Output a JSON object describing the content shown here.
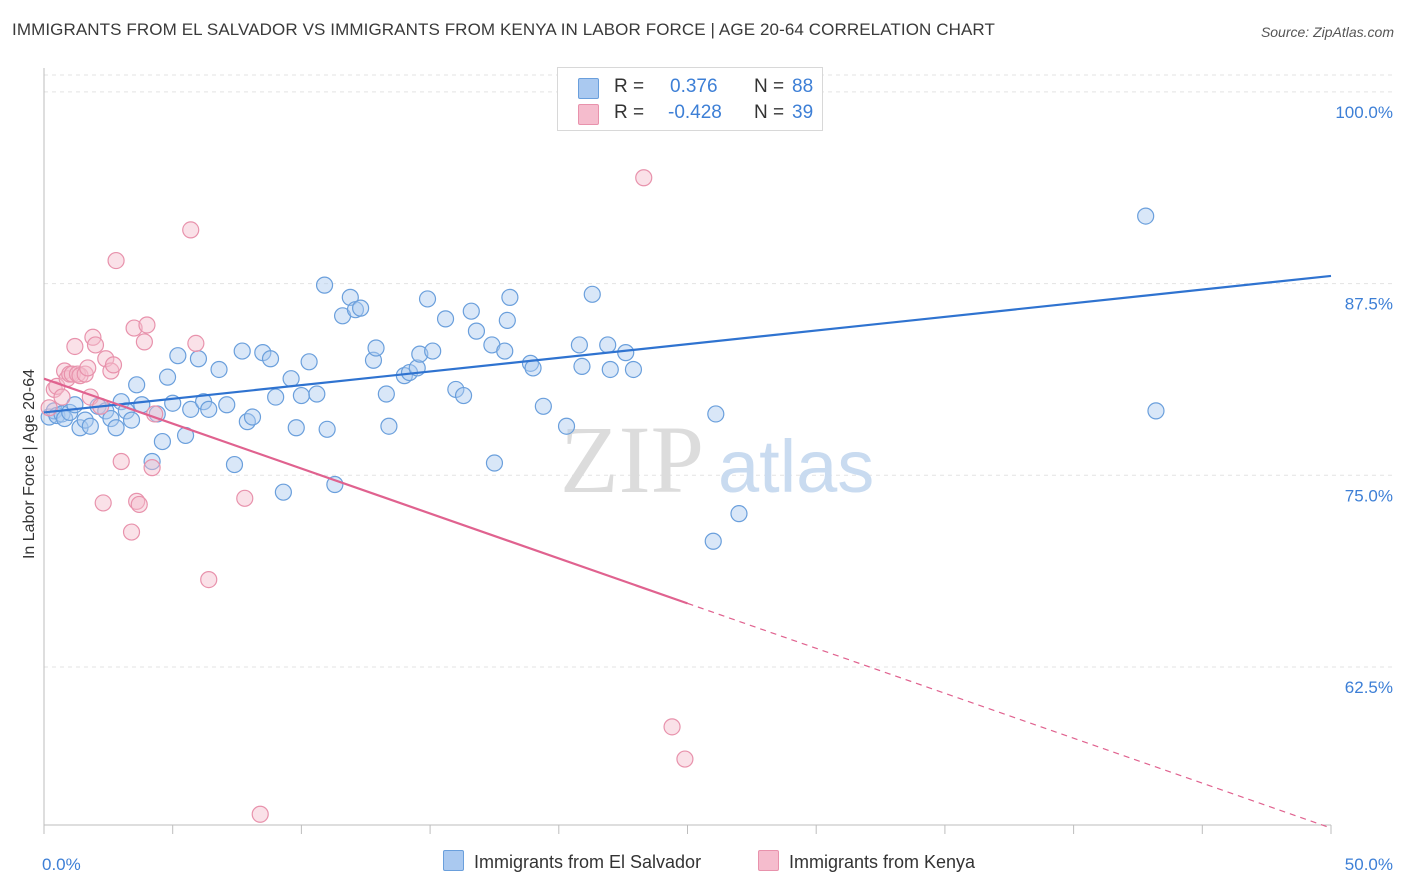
{
  "title": "IMMIGRANTS FROM EL SALVADOR VS IMMIGRANTS FROM KENYA IN LABOR FORCE | AGE 20-64 CORRELATION CHART",
  "source": "Source: ZipAtlas.com",
  "watermark": {
    "zip": "ZIP",
    "atlas": "atlas"
  },
  "colors": {
    "el_salvador_fill": "#aac9f0",
    "el_salvador_stroke": "#6a9fdc",
    "el_salvador_line": "#2f73d0",
    "kenya_fill": "#f5bccd",
    "kenya_stroke": "#e892ac",
    "kenya_line": "#e0628f",
    "tick_label": "#3d7fd6",
    "grid": "#e3e3e3"
  },
  "legend_top": {
    "rows": [
      {
        "r_label": "R =",
        "r_value": "0.376",
        "n_label": "N =",
        "n_value": "88"
      },
      {
        "r_label": "R =",
        "r_value": "-0.428",
        "n_label": "N =",
        "n_value": "39"
      }
    ]
  },
  "legend_bottom": {
    "el_salvador": "Immigrants from El Salvador",
    "kenya": "Immigrants from Kenya"
  },
  "chart_data": {
    "type": "scatter",
    "title": "IMMIGRANTS FROM EL SALVADOR VS IMMIGRANTS FROM KENYA IN LABOR FORCE | AGE 20-64 CORRELATION CHART",
    "xlabel": "",
    "ylabel": "In Labor Force | Age 20-64",
    "xlim": [
      0,
      50
    ],
    "ylim": [
      52.2,
      101.1
    ],
    "x_tick_labels": [
      "0.0%",
      "50.0%"
    ],
    "y_ticks": [
      62.5,
      75.0,
      87.5,
      100.0
    ],
    "y_tick_labels": [
      "62.5%",
      "75.0%",
      "87.5%",
      "100.0%"
    ],
    "grid": "horizontal dashed",
    "legend_placement": "bottom",
    "series": [
      {
        "name": "Immigrants from El Salvador",
        "r": 0.376,
        "n": 88,
        "trend": {
          "x": [
            0,
            50
          ],
          "y": [
            79.1,
            88.0
          ],
          "style": "solid"
        },
        "points": [
          [
            0.2,
            78.8
          ],
          [
            0.4,
            79.2
          ],
          [
            0.5,
            78.9
          ],
          [
            0.7,
            79.0
          ],
          [
            0.8,
            78.7
          ],
          [
            1.0,
            79.1
          ],
          [
            1.2,
            79.6
          ],
          [
            1.4,
            78.1
          ],
          [
            1.6,
            78.6
          ],
          [
            1.8,
            78.2
          ],
          [
            2.1,
            79.5
          ],
          [
            2.4,
            79.2
          ],
          [
            2.6,
            78.7
          ],
          [
            2.8,
            78.1
          ],
          [
            3.0,
            79.8
          ],
          [
            3.2,
            79.2
          ],
          [
            3.4,
            78.6
          ],
          [
            3.6,
            80.9
          ],
          [
            3.8,
            79.6
          ],
          [
            4.2,
            75.9
          ],
          [
            4.4,
            79.0
          ],
          [
            4.6,
            77.2
          ],
          [
            4.8,
            81.4
          ],
          [
            5.0,
            79.7
          ],
          [
            5.2,
            82.8
          ],
          [
            5.5,
            77.6
          ],
          [
            5.7,
            79.3
          ],
          [
            6.0,
            82.6
          ],
          [
            6.2,
            79.8
          ],
          [
            6.4,
            79.3
          ],
          [
            6.8,
            81.9
          ],
          [
            7.1,
            79.6
          ],
          [
            7.4,
            75.7
          ],
          [
            7.7,
            83.1
          ],
          [
            7.9,
            78.5
          ],
          [
            8.1,
            78.8
          ],
          [
            8.5,
            83.0
          ],
          [
            8.8,
            82.6
          ],
          [
            9.0,
            80.1
          ],
          [
            9.3,
            73.9
          ],
          [
            9.6,
            81.3
          ],
          [
            9.8,
            78.1
          ],
          [
            10.0,
            80.2
          ],
          [
            10.3,
            82.4
          ],
          [
            10.6,
            80.3
          ],
          [
            10.9,
            87.4
          ],
          [
            11.0,
            78.0
          ],
          [
            11.3,
            74.4
          ],
          [
            11.6,
            85.4
          ],
          [
            11.9,
            86.6
          ],
          [
            12.1,
            85.8
          ],
          [
            12.3,
            85.9
          ],
          [
            12.8,
            82.5
          ],
          [
            12.9,
            83.3
          ],
          [
            13.3,
            80.3
          ],
          [
            13.4,
            78.2
          ],
          [
            14.0,
            81.5
          ],
          [
            14.2,
            81.7
          ],
          [
            14.5,
            82.0
          ],
          [
            14.6,
            82.9
          ],
          [
            14.9,
            86.5
          ],
          [
            15.1,
            83.1
          ],
          [
            15.6,
            85.2
          ],
          [
            16.0,
            80.6
          ],
          [
            16.3,
            80.2
          ],
          [
            16.6,
            85.7
          ],
          [
            16.8,
            84.4
          ],
          [
            17.4,
            83.5
          ],
          [
            17.5,
            75.8
          ],
          [
            17.9,
            83.1
          ],
          [
            18.0,
            85.1
          ],
          [
            18.1,
            86.6
          ],
          [
            18.9,
            82.3
          ],
          [
            19.0,
            82.0
          ],
          [
            19.4,
            79.5
          ],
          [
            20.3,
            78.2
          ],
          [
            20.8,
            83.5
          ],
          [
            20.9,
            82.1
          ],
          [
            21.3,
            86.8
          ],
          [
            21.9,
            83.5
          ],
          [
            22.0,
            81.9
          ],
          [
            22.6,
            83.0
          ],
          [
            22.9,
            81.9
          ],
          [
            26.0,
            70.7
          ],
          [
            26.1,
            79.0
          ],
          [
            27.0,
            72.5
          ],
          [
            42.8,
            91.9
          ],
          [
            43.2,
            79.2
          ]
        ]
      },
      {
        "name": "Immigrants from Kenya",
        "r": -0.428,
        "n": 39,
        "trend": {
          "x": [
            0,
            50
          ],
          "y": [
            81.3,
            52.0
          ],
          "solid_until_x": 25.0,
          "style": "solid then dashed"
        },
        "points": [
          [
            0.2,
            79.4
          ],
          [
            0.4,
            80.6
          ],
          [
            0.5,
            80.8
          ],
          [
            0.7,
            80.1
          ],
          [
            0.8,
            81.8
          ],
          [
            0.9,
            81.3
          ],
          [
            1.0,
            81.6
          ],
          [
            1.1,
            81.6
          ],
          [
            1.2,
            83.4
          ],
          [
            1.3,
            81.6
          ],
          [
            1.4,
            81.5
          ],
          [
            1.6,
            81.6
          ],
          [
            1.7,
            82.0
          ],
          [
            1.8,
            80.1
          ],
          [
            1.9,
            84.0
          ],
          [
            2.0,
            83.5
          ],
          [
            2.2,
            79.5
          ],
          [
            2.3,
            73.2
          ],
          [
            2.4,
            82.6
          ],
          [
            2.6,
            81.8
          ],
          [
            2.7,
            82.2
          ],
          [
            2.8,
            89.0
          ],
          [
            3.0,
            75.9
          ],
          [
            3.4,
            71.3
          ],
          [
            3.5,
            84.6
          ],
          [
            3.6,
            73.3
          ],
          [
            3.7,
            73.1
          ],
          [
            3.9,
            83.7
          ],
          [
            4.0,
            84.8
          ],
          [
            4.2,
            75.5
          ],
          [
            4.3,
            79.0
          ],
          [
            5.7,
            91.0
          ],
          [
            5.9,
            83.6
          ],
          [
            6.4,
            68.2
          ],
          [
            7.8,
            73.5
          ],
          [
            8.4,
            52.9
          ],
          [
            23.3,
            94.4
          ],
          [
            24.4,
            58.6
          ],
          [
            24.9,
            56.5
          ]
        ]
      }
    ]
  }
}
